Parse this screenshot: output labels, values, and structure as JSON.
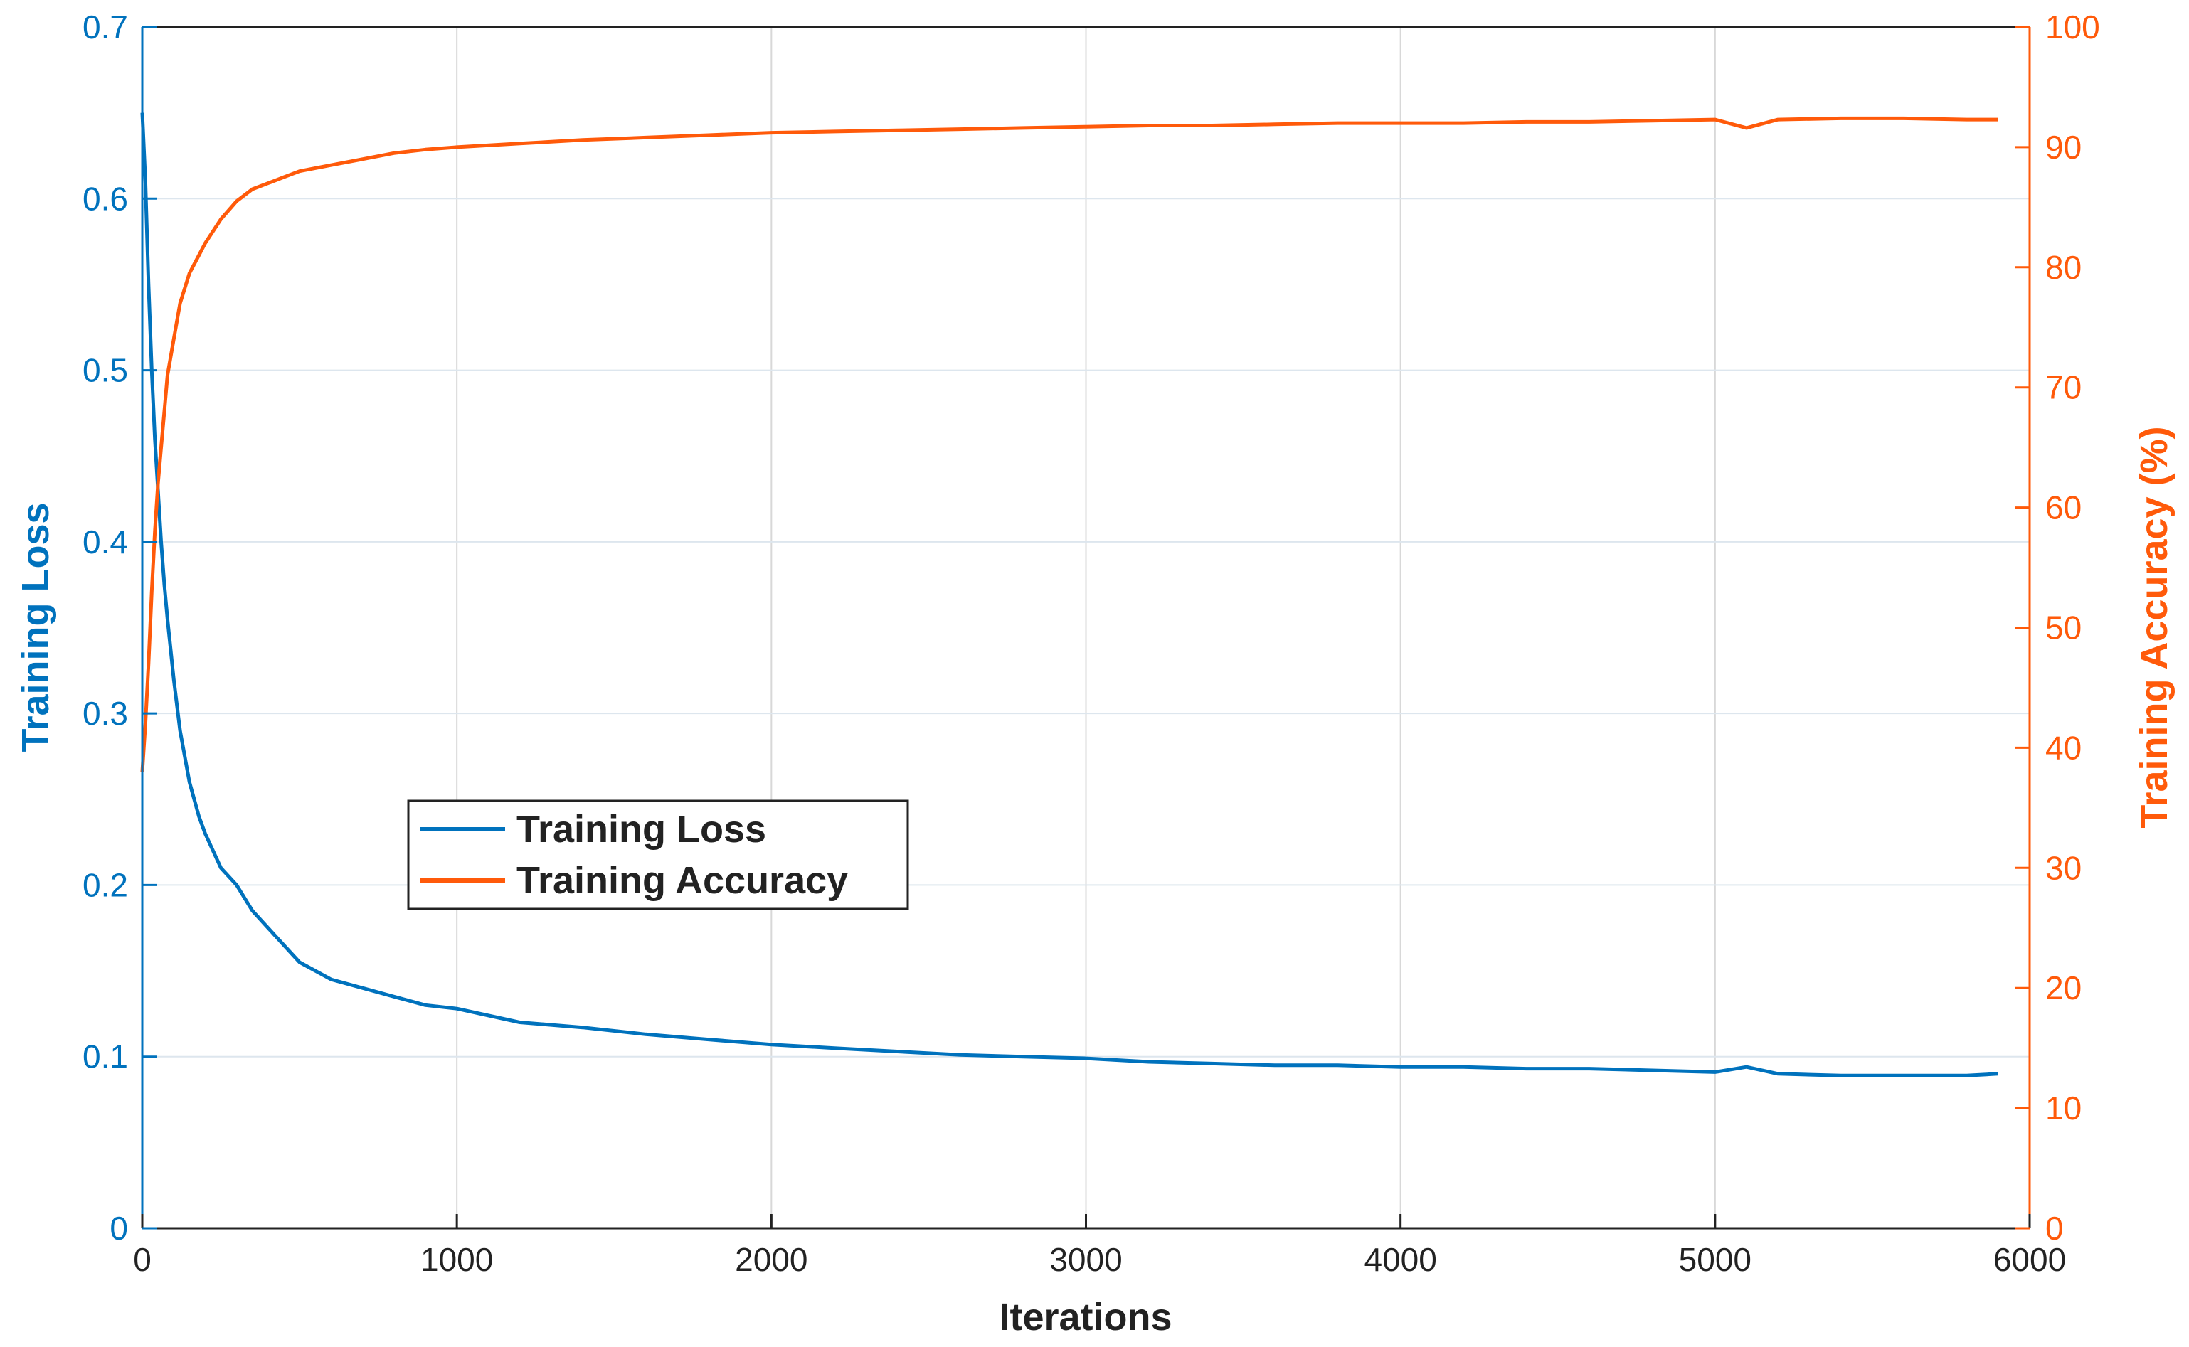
{
  "chart_data": {
    "type": "line",
    "title": "",
    "xlabel": "Iterations",
    "ylabel_left": "Training Loss",
    "ylabel_right": "Training Accuracy (%)",
    "xlim": [
      0,
      6000
    ],
    "ylim_left": [
      0,
      0.7
    ],
    "ylim_right": [
      0,
      100
    ],
    "x_ticks": [
      "0",
      "1000",
      "2000",
      "3000",
      "4000",
      "5000",
      "6000"
    ],
    "y_left_ticks": [
      "0",
      "0.1",
      "0.2",
      "0.3",
      "0.4",
      "0.5",
      "0.6",
      "0.7"
    ],
    "y_right_ticks": [
      "0",
      "10",
      "20",
      "30",
      "40",
      "50",
      "60",
      "70",
      "80",
      "90",
      "100"
    ],
    "grid": true,
    "legend_position": "center-left",
    "colors": {
      "loss": "#0072BD",
      "accuracy": "#FF5A0A",
      "grid": "#dde6ee",
      "axis_left": "#0072BD",
      "axis_right": "#FF5A0A"
    },
    "series": [
      {
        "name": "Training Loss",
        "axis": "left",
        "x": [
          0,
          10,
          20,
          30,
          40,
          50,
          60,
          70,
          80,
          100,
          120,
          150,
          180,
          200,
          250,
          300,
          350,
          400,
          450,
          500,
          600,
          700,
          800,
          900,
          1000,
          1200,
          1400,
          1600,
          1800,
          2000,
          2200,
          2400,
          2600,
          2800,
          3000,
          3200,
          3400,
          3600,
          3800,
          4000,
          4200,
          4400,
          4600,
          4800,
          5000,
          5100,
          5200,
          5400,
          5600,
          5800,
          5900
        ],
        "values": [
          0.65,
          0.61,
          0.55,
          0.5,
          0.46,
          0.43,
          0.4,
          0.375,
          0.355,
          0.32,
          0.29,
          0.26,
          0.24,
          0.23,
          0.21,
          0.2,
          0.185,
          0.175,
          0.165,
          0.155,
          0.145,
          0.14,
          0.135,
          0.13,
          0.128,
          0.12,
          0.117,
          0.113,
          0.11,
          0.107,
          0.105,
          0.103,
          0.101,
          0.1,
          0.099,
          0.097,
          0.096,
          0.095,
          0.095,
          0.094,
          0.094,
          0.093,
          0.093,
          0.092,
          0.091,
          0.094,
          0.09,
          0.089,
          0.089,
          0.089,
          0.09
        ]
      },
      {
        "name": "Training Accuracy",
        "axis": "right",
        "x": [
          0,
          10,
          20,
          30,
          40,
          50,
          60,
          70,
          80,
          100,
          120,
          150,
          180,
          200,
          250,
          300,
          350,
          400,
          450,
          500,
          600,
          700,
          800,
          900,
          1000,
          1200,
          1400,
          1600,
          1800,
          2000,
          2200,
          2400,
          2600,
          2800,
          3000,
          3200,
          3400,
          3600,
          3800,
          4000,
          4200,
          4400,
          4600,
          4800,
          5000,
          5100,
          5200,
          5400,
          5600,
          5800,
          5900
        ],
        "values": [
          38,
          42,
          47,
          53,
          58,
          62,
          65,
          68,
          71,
          74,
          77,
          79.5,
          81,
          82,
          84,
          85.5,
          86.5,
          87,
          87.5,
          88,
          88.5,
          89,
          89.5,
          89.8,
          90,
          90.3,
          90.6,
          90.8,
          91,
          91.2,
          91.3,
          91.4,
          91.5,
          91.6,
          91.7,
          91.8,
          91.8,
          91.9,
          92.0,
          92.0,
          92.0,
          92.1,
          92.1,
          92.2,
          92.3,
          91.6,
          92.3,
          92.4,
          92.4,
          92.3,
          92.3
        ]
      }
    ]
  }
}
